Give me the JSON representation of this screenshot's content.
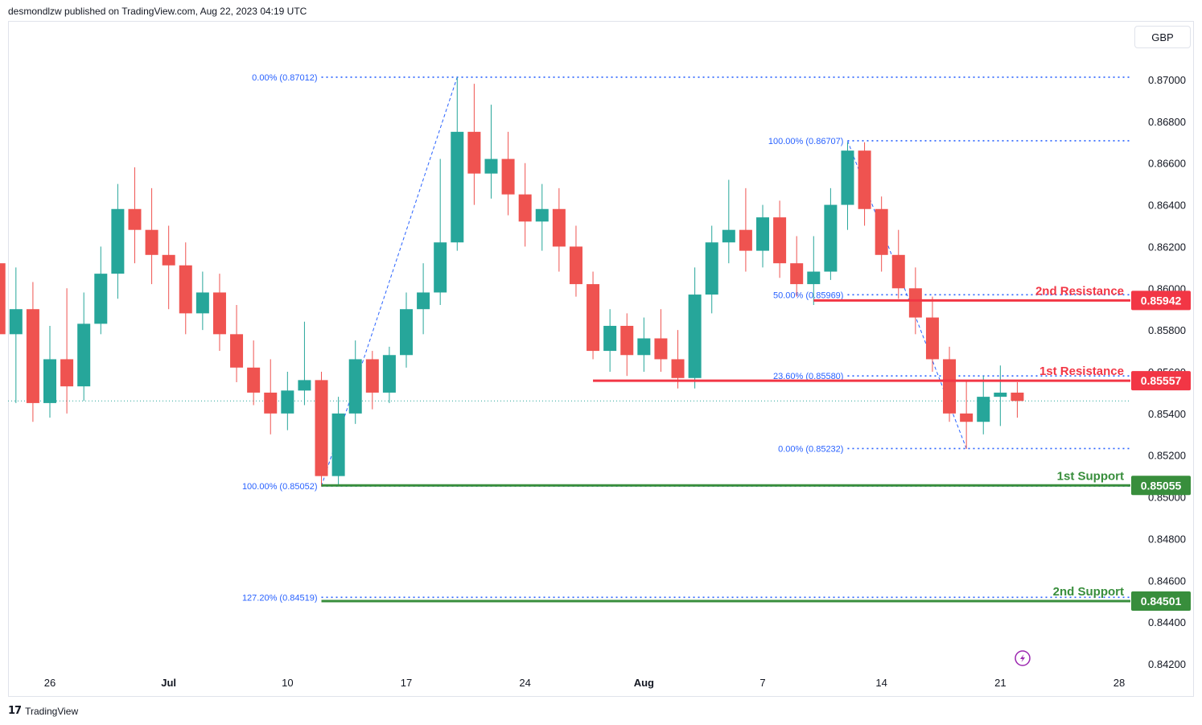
{
  "header": {
    "text": "desmondlzw published on TradingView.com, Aug 22, 2023 04:19 UTC"
  },
  "currency": "GBP",
  "footer": {
    "brand": "TradingView",
    "logo": "17"
  },
  "colors": {
    "up": "#26a69a",
    "down": "#ef5350",
    "resistance": "#f23645",
    "support": "#388e3c",
    "fib": "#2962ff",
    "grid": "#e0e3eb",
    "accent": "#9c27b0"
  },
  "chart_data": {
    "type": "candlestick",
    "title": "",
    "ylim": [
      0.8416,
      0.8716
    ],
    "y_ticks": [
      "0.87000",
      "0.86800",
      "0.86600",
      "0.86400",
      "0.86200",
      "0.86000",
      "0.85800",
      "0.85600",
      "0.85400",
      "0.85200",
      "0.85000",
      "0.84800",
      "0.84600",
      "0.84400",
      "0.84200"
    ],
    "x_ticks": [
      "26",
      "Jul",
      "10",
      "17",
      "24",
      "Aug",
      "7",
      "14",
      "21",
      "28"
    ],
    "x_tick_dates": [
      "2023-06-26",
      "2023-07-03",
      "2023-07-10",
      "2023-07-17",
      "2023-07-24",
      "2023-07-31",
      "2023-08-07",
      "2023-08-14",
      "2023-08-21",
      "2023-08-28"
    ],
    "levels": [
      {
        "label": "2nd Resistance",
        "value": 0.85942,
        "tag": "0.85942",
        "kind": "resistance",
        "from": "2023-08-10"
      },
      {
        "label": "1st Resistance",
        "value": 0.85557,
        "tag": "0.85557",
        "kind": "resistance",
        "from": "2023-07-28"
      },
      {
        "label": "1st Support",
        "value": 0.85055,
        "tag": "0.85055",
        "kind": "support",
        "from": "2023-07-12"
      },
      {
        "label": "2nd Support",
        "value": 0.84501,
        "tag": "0.84501",
        "kind": "support",
        "from": "2023-07-12"
      }
    ],
    "fib_levels": [
      {
        "label": "0.00% (0.87012)",
        "value": 0.87012,
        "from": "2023-07-12"
      },
      {
        "label": "100.00% (0.85052)",
        "value": 0.85052,
        "from": "2023-07-12"
      },
      {
        "label": "127.20% (0.84519)",
        "value": 0.84519,
        "from": "2023-07-12"
      },
      {
        "label": "100.00% (0.86707)",
        "value": 0.86707,
        "from": "2023-08-12"
      },
      {
        "label": "50.00% (0.85969)",
        "value": 0.85969,
        "from": "2023-08-12"
      },
      {
        "label": "23.60% (0.85580)",
        "value": 0.8558,
        "from": "2023-08-12"
      },
      {
        "label": "0.00% (0.85232)",
        "value": 0.85232,
        "from": "2023-08-12"
      }
    ],
    "fib_trendlines": [
      {
        "from": [
          "2023-07-12",
          0.85052
        ],
        "to": [
          "2023-07-20",
          0.87012
        ]
      },
      {
        "from": [
          "2023-08-12",
          0.86707
        ],
        "to": [
          "2023-08-19",
          0.85232
        ]
      }
    ],
    "last_price": 0.8546,
    "series": [
      {
        "name": "",
        "points": [
          [
            "2023-06-22",
            0.8598,
            0.8638,
            0.8555,
            0.8612
          ],
          [
            "2023-06-23",
            0.8612,
            0.864,
            0.857,
            0.8578
          ],
          [
            "2023-06-24",
            0.8578,
            0.861,
            0.8545,
            0.859
          ],
          [
            "2023-06-25",
            0.859,
            0.8603,
            0.8536,
            0.8545
          ],
          [
            "2023-06-26",
            0.8545,
            0.8582,
            0.8538,
            0.8566
          ],
          [
            "2023-06-27",
            0.8566,
            0.86,
            0.854,
            0.8553
          ],
          [
            "2023-06-28",
            0.8553,
            0.8598,
            0.8546,
            0.8583
          ],
          [
            "2023-06-29",
            0.8583,
            0.862,
            0.8578,
            0.8607
          ],
          [
            "2023-06-30",
            0.8607,
            0.865,
            0.8595,
            0.8638
          ],
          [
            "2023-07-01",
            0.8638,
            0.8658,
            0.8612,
            0.8628
          ],
          [
            "2023-07-02",
            0.8628,
            0.8648,
            0.8602,
            0.8616
          ],
          [
            "2023-07-03",
            0.8616,
            0.863,
            0.859,
            0.8611
          ],
          [
            "2023-07-04",
            0.8611,
            0.8622,
            0.8578,
            0.8588
          ],
          [
            "2023-07-05",
            0.8588,
            0.8608,
            0.858,
            0.8598
          ],
          [
            "2023-07-06",
            0.8598,
            0.8607,
            0.857,
            0.8578
          ],
          [
            "2023-07-07",
            0.8578,
            0.8592,
            0.8555,
            0.8562
          ],
          [
            "2023-07-08",
            0.8562,
            0.8575,
            0.8544,
            0.855
          ],
          [
            "2023-07-09",
            0.855,
            0.8566,
            0.853,
            0.854
          ],
          [
            "2023-07-10",
            0.854,
            0.856,
            0.8532,
            0.8551
          ],
          [
            "2023-07-11",
            0.8551,
            0.8584,
            0.8544,
            0.8556
          ],
          [
            "2023-07-12",
            0.8556,
            0.856,
            0.8505,
            0.851
          ],
          [
            "2023-07-13",
            0.851,
            0.8548,
            0.8505,
            0.854
          ],
          [
            "2023-07-14",
            0.854,
            0.8575,
            0.8535,
            0.8566
          ],
          [
            "2023-07-15",
            0.8566,
            0.857,
            0.8542,
            0.855
          ],
          [
            "2023-07-16",
            0.855,
            0.8572,
            0.8545,
            0.8568
          ],
          [
            "2023-07-17",
            0.8568,
            0.8598,
            0.8562,
            0.859
          ],
          [
            "2023-07-18",
            0.859,
            0.8612,
            0.8578,
            0.8598
          ],
          [
            "2023-07-19",
            0.8598,
            0.8662,
            0.8592,
            0.8622
          ],
          [
            "2023-07-20",
            0.8622,
            0.8701,
            0.8618,
            0.8675
          ],
          [
            "2023-07-21",
            0.8675,
            0.8698,
            0.864,
            0.8655
          ],
          [
            "2023-07-22",
            0.8655,
            0.8688,
            0.8643,
            0.8662
          ],
          [
            "2023-07-23",
            0.8662,
            0.8675,
            0.8635,
            0.8645
          ],
          [
            "2023-07-24",
            0.8645,
            0.866,
            0.862,
            0.8632
          ],
          [
            "2023-07-25",
            0.8632,
            0.865,
            0.8618,
            0.8638
          ],
          [
            "2023-07-26",
            0.8638,
            0.8648,
            0.8608,
            0.862
          ],
          [
            "2023-07-27",
            0.862,
            0.863,
            0.8596,
            0.8602
          ],
          [
            "2023-07-28",
            0.8602,
            0.8608,
            0.8566,
            0.857
          ],
          [
            "2023-07-29",
            0.857,
            0.859,
            0.856,
            0.8582
          ],
          [
            "2023-07-30",
            0.8582,
            0.8588,
            0.8558,
            0.8568
          ],
          [
            "2023-07-31",
            0.8568,
            0.8586,
            0.856,
            0.8576
          ],
          [
            "2023-08-01",
            0.8576,
            0.859,
            0.856,
            0.8566
          ],
          [
            "2023-08-02",
            0.8566,
            0.858,
            0.8552,
            0.8557
          ],
          [
            "2023-08-03",
            0.8557,
            0.861,
            0.8552,
            0.8597
          ],
          [
            "2023-08-04",
            0.8597,
            0.863,
            0.8588,
            0.8622
          ],
          [
            "2023-08-05",
            0.8622,
            0.8652,
            0.8612,
            0.8628
          ],
          [
            "2023-08-06",
            0.8628,
            0.8648,
            0.8608,
            0.8618
          ],
          [
            "2023-08-07",
            0.8618,
            0.864,
            0.861,
            0.8634
          ],
          [
            "2023-08-08",
            0.8634,
            0.8642,
            0.8605,
            0.8612
          ],
          [
            "2023-08-09",
            0.8612,
            0.8625,
            0.8596,
            0.8602
          ],
          [
            "2023-08-10",
            0.8602,
            0.8625,
            0.8592,
            0.8608
          ],
          [
            "2023-08-11",
            0.8608,
            0.8648,
            0.8604,
            0.864
          ],
          [
            "2023-08-12",
            0.864,
            0.867,
            0.8628,
            0.8666
          ],
          [
            "2023-08-13",
            0.8666,
            0.867,
            0.863,
            0.8638
          ],
          [
            "2023-08-14",
            0.8638,
            0.8644,
            0.8608,
            0.8616
          ],
          [
            "2023-08-15",
            0.8616,
            0.8628,
            0.8595,
            0.86
          ],
          [
            "2023-08-16",
            0.86,
            0.861,
            0.8578,
            0.8586
          ],
          [
            "2023-08-17",
            0.8586,
            0.8596,
            0.856,
            0.8566
          ],
          [
            "2023-08-18",
            0.8566,
            0.8572,
            0.8536,
            0.854
          ],
          [
            "2023-08-19",
            0.854,
            0.8556,
            0.8523,
            0.8536
          ],
          [
            "2023-08-20",
            0.8536,
            0.8558,
            0.853,
            0.8548
          ],
          [
            "2023-08-21",
            0.8548,
            0.8563,
            0.8534,
            0.855
          ],
          [
            "2023-08-22",
            0.855,
            0.8555,
            0.8538,
            0.8546
          ]
        ]
      }
    ]
  }
}
